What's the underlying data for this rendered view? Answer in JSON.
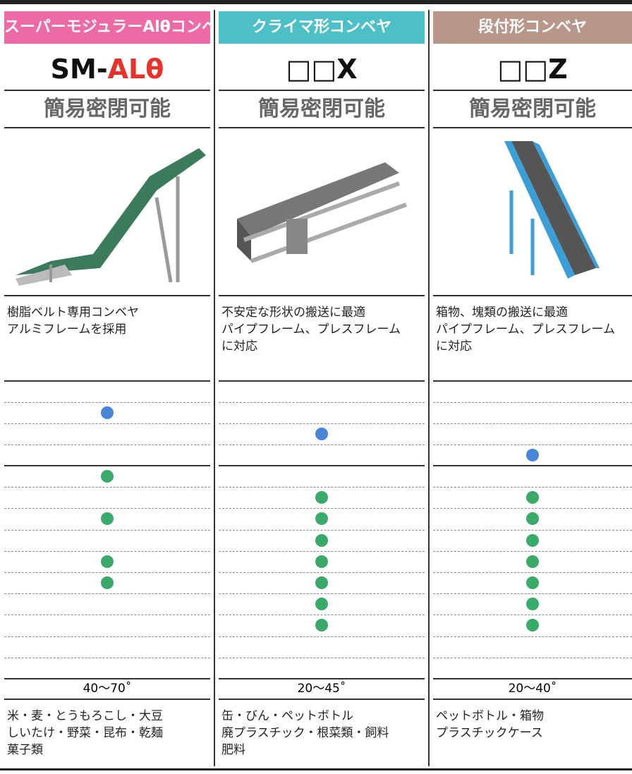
{
  "columns": [
    {
      "category": "スーパーモジュラーAlθコンベヤ",
      "model": [
        "SM-",
        "ALθ"
      ],
      "feature": "簡易密閉可能",
      "description": [
        "樹脂ベルト専用コンベヤ",
        "アルミフレームを採用"
      ],
      "rating_upper": [
        0,
        1,
        0,
        0
      ],
      "rating_lower": [
        1,
        0,
        1,
        0,
        1,
        1,
        0,
        0,
        0,
        0
      ],
      "angle": "40〜70˚",
      "uses": [
        "米・麦・とうもろこし・大豆",
        "しいたけ・野菜・昆布・乾麺",
        "菓子類"
      ]
    },
    {
      "category": "クライマ形コンベヤ",
      "model": [
        "□□X"
      ],
      "feature": "簡易密閉可能",
      "description": [
        "不安定な形状の搬送に最適",
        "パイプフレーム、プレスフレーム",
        "に対応"
      ],
      "rating_upper": [
        0,
        0,
        1,
        0
      ],
      "rating_lower": [
        0,
        1,
        1,
        1,
        1,
        1,
        1,
        1,
        0,
        0
      ],
      "angle": "20〜45˚",
      "uses": [
        "缶・びん・ペットボトル",
        "廃プラスチック・根菜類・飼料",
        "肥料"
      ]
    },
    {
      "category": "段付形コンベヤ",
      "model": [
        "□□Z"
      ],
      "feature": "簡易密閉可能",
      "description": [
        "箱物、塊類の搬送に最適",
        "パイプフレーム、プレスフレーム",
        "に対応"
      ],
      "rating_upper": [
        0,
        0,
        0,
        1
      ],
      "rating_lower": [
        0,
        1,
        1,
        1,
        1,
        1,
        1,
        1,
        0,
        0
      ],
      "angle": "20〜40˚",
      "uses": [
        "ペットボトル・箱物",
        "プラスチックケース"
      ]
    }
  ]
}
